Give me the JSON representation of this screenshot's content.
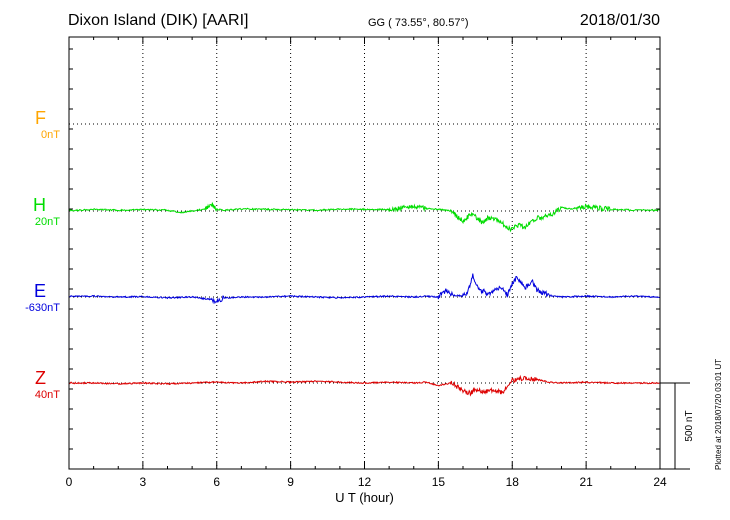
{
  "header": {
    "title": "Dixon Island (DIK)  [AARI]",
    "coords": "GG ( 73.55°,  80.57°)",
    "date": "2018/01/30"
  },
  "footer_note": "Plotted at 2018/07/20 03:01  UT",
  "colors": {
    "F": "#ffa500",
    "H": "#00dd00",
    "E": "#0000dd",
    "Z": "#dd0000"
  },
  "chart_data": {
    "type": "line",
    "xlabel": "U T (hour)",
    "xlim": [
      0,
      24
    ],
    "x_ticks": [
      "0",
      "3",
      "6",
      "9",
      "12",
      "15",
      "18",
      "21",
      "24"
    ],
    "grid": true,
    "scale_bar": {
      "label": "500 nT",
      "value_nT": 500
    },
    "series": [
      {
        "name": "F",
        "baseline": "0nT",
        "x": [],
        "y": []
      },
      {
        "name": "H",
        "baseline": "20nT",
        "x": [
          0,
          0.5,
          1,
          2,
          3,
          4,
          4.5,
          5,
          5.5,
          5.8,
          6.0,
          6.3,
          7,
          8,
          9,
          10,
          11,
          12,
          13,
          14,
          14.5,
          15,
          15.5,
          16,
          16.3,
          16.5,
          16.8,
          17,
          17.3,
          17.6,
          17.8,
          18.0,
          18.2,
          18.5,
          18.8,
          19,
          19.5,
          20,
          20.5,
          21,
          22,
          23,
          24
        ],
        "y": [
          5,
          5,
          10,
          5,
          8,
          5,
          -10,
          0,
          10,
          40,
          10,
          5,
          12,
          10,
          8,
          5,
          12,
          10,
          8,
          25,
          15,
          10,
          0,
          -60,
          -20,
          -30,
          -70,
          -40,
          -50,
          -70,
          -100,
          -110,
          -80,
          -95,
          -60,
          -40,
          -30,
          20,
          10,
          25,
          10,
          5,
          5
        ]
      },
      {
        "name": "E",
        "baseline": "-630nT",
        "x": [
          0,
          1,
          2,
          3,
          4,
          5,
          5.8,
          6.0,
          6.3,
          7,
          8,
          9,
          10,
          11,
          12,
          13,
          14,
          14.5,
          15,
          15.3,
          15.6,
          16,
          16.2,
          16.4,
          16.6,
          17,
          17.3,
          17.6,
          17.8,
          18,
          18.2,
          18.5,
          18.8,
          19,
          19.5,
          20,
          21,
          22,
          23,
          24
        ],
        "y": [
          5,
          5,
          0,
          3,
          -5,
          0,
          -15,
          -25,
          -5,
          0,
          0,
          5,
          0,
          -5,
          0,
          5,
          0,
          5,
          0,
          35,
          10,
          5,
          30,
          125,
          50,
          20,
          40,
          60,
          10,
          80,
          115,
          50,
          95,
          40,
          10,
          0,
          5,
          0,
          5,
          0
        ]
      },
      {
        "name": "Z",
        "baseline": "40nT",
        "x": [
          0,
          1,
          2,
          3,
          4,
          5,
          6,
          7,
          8,
          9,
          10,
          11,
          12,
          13,
          14,
          14.5,
          15,
          15.5,
          16,
          16.3,
          16.5,
          16.8,
          17,
          17.3,
          17.6,
          17.8,
          18,
          18.5,
          19,
          19.5,
          20,
          21,
          22,
          23,
          24
        ],
        "y": [
          0,
          0,
          -5,
          0,
          -5,
          0,
          5,
          0,
          10,
          5,
          10,
          5,
          0,
          5,
          0,
          5,
          -15,
          0,
          -40,
          -60,
          -35,
          -55,
          -45,
          -40,
          -55,
          -20,
          15,
          30,
          20,
          5,
          0,
          5,
          0,
          0,
          0
        ]
      }
    ]
  }
}
